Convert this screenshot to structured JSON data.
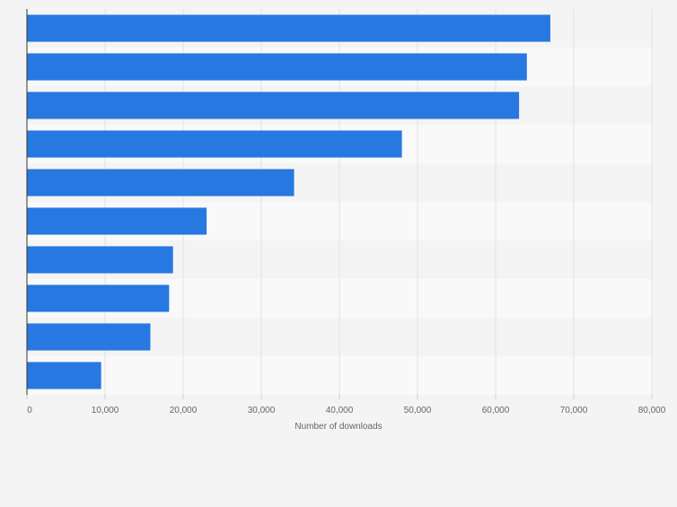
{
  "chart_data": {
    "type": "bar",
    "orientation": "horizontal",
    "title": "",
    "xlabel": "Number of downloads",
    "ylabel": "",
    "categories": [
      "",
      "",
      "",
      "",
      "",
      "",
      "",
      "",
      "",
      ""
    ],
    "values": [
      67000,
      64000,
      63000,
      48000,
      34200,
      23000,
      18700,
      18200,
      15800,
      9500
    ],
    "xlim": [
      0,
      80000
    ],
    "xticks": [
      0,
      10000,
      20000,
      30000,
      40000,
      50000,
      60000,
      70000,
      80000
    ],
    "xtick_labels": [
      "0",
      "10,000",
      "20,000",
      "30,000",
      "40,000",
      "50,000",
      "60,000",
      "70,000",
      "80,000"
    ],
    "grid": true,
    "colors": {
      "bar": "#2778e0",
      "band_light": "#f9f9f9",
      "band_dark": "#f4f4f4",
      "grid": "#e2e2e2",
      "axis": "#333333",
      "tick_text": "#666666",
      "label_text": "#666666"
    }
  }
}
